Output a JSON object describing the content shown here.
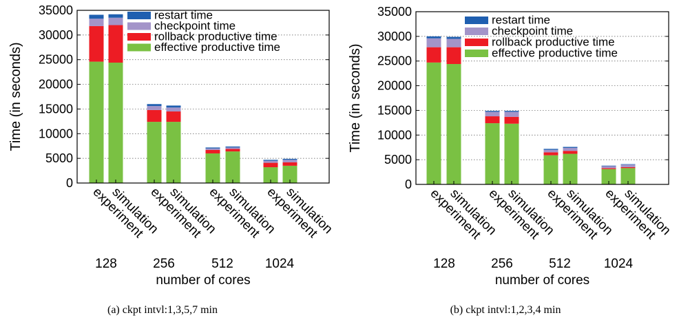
{
  "chart_data": [
    {
      "type": "bar",
      "stacked": true,
      "caption": "(a)  ckpt intvl:1,3,5,7 min",
      "ylabel": "Time (in seconds)",
      "xlabel": "number of cores",
      "ylim": [
        0,
        35000
      ],
      "yticks": [
        "0",
        "5000",
        "10000",
        "15000",
        "20000",
        "25000",
        "30000",
        "35000"
      ],
      "grid": true,
      "legend_position": "top-right",
      "groups": [
        "128",
        "256",
        "512",
        "1024"
      ],
      "categories": [
        "experiment",
        "simulation",
        "experiment",
        "simulation",
        "experiment",
        "simulation",
        "experiment",
        "simulation"
      ],
      "series": [
        {
          "name": "effective productive time",
          "color": "#7ac143",
          "values": [
            24600,
            24400,
            12400,
            12400,
            6000,
            6400,
            3200,
            3500
          ]
        },
        {
          "name": "rollback productive time",
          "color": "#ed1c24",
          "values": [
            7200,
            7600,
            2400,
            2100,
            700,
            500,
            900,
            700
          ]
        },
        {
          "name": "checkpoint time",
          "color": "#a394c9",
          "values": [
            1500,
            1500,
            800,
            800,
            300,
            300,
            400,
            500
          ]
        },
        {
          "name": "restart time",
          "color": "#1f5fb0",
          "values": [
            800,
            700,
            400,
            400,
            200,
            200,
            200,
            200
          ]
        }
      ]
    },
    {
      "type": "bar",
      "stacked": true,
      "caption": "(b)  ckpt intvl:1,2,3,4 min",
      "ylabel": "Time (in seconds)",
      "xlabel": "number of cores",
      "ylim": [
        0,
        35000
      ],
      "yticks": [
        "0",
        "5000",
        "10000",
        "15000",
        "20000",
        "25000",
        "30000",
        "35000"
      ],
      "grid": true,
      "legend_position": "top-right",
      "groups": [
        "128",
        "256",
        "512",
        "1024"
      ],
      "categories": [
        "experiment",
        "simulation",
        "experiment",
        "simulation",
        "experiment",
        "simulation",
        "experiment",
        "simulation"
      ],
      "series": [
        {
          "name": "effective productive time",
          "color": "#7ac143",
          "values": [
            24700,
            24400,
            12400,
            12300,
            5900,
            6200,
            3100,
            3300
          ]
        },
        {
          "name": "rollback productive time",
          "color": "#ed1c24",
          "values": [
            3100,
            3400,
            1400,
            1400,
            600,
            600,
            200,
            200
          ]
        },
        {
          "name": "checkpoint time",
          "color": "#a394c9",
          "values": [
            1800,
            1700,
            900,
            1000,
            500,
            600,
            400,
            500
          ]
        },
        {
          "name": "restart time",
          "color": "#1f5fb0",
          "values": [
            400,
            400,
            200,
            200,
            200,
            200,
            100,
            100
          ]
        }
      ]
    }
  ]
}
